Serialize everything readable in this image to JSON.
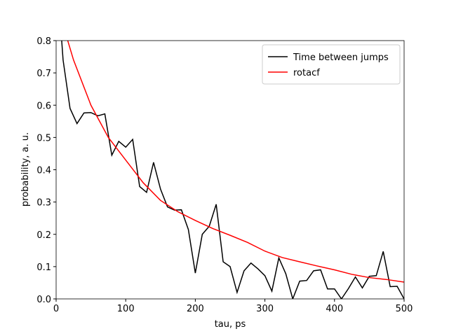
{
  "chart_data": {
    "type": "line",
    "xlabel": "tau, ps",
    "ylabel": "probability, a. u.",
    "xlim": [
      0,
      500
    ],
    "ylim": [
      0,
      0.8
    ],
    "xticks": [
      0,
      100,
      200,
      300,
      400,
      500
    ],
    "yticks": [
      {
        "value": 0,
        "label": "0.0"
      },
      {
        "value": 0.1,
        "label": "0.1"
      },
      {
        "value": 0.2,
        "label": "0.2"
      },
      {
        "value": 0.3,
        "label": "0.3"
      },
      {
        "value": 0.4,
        "label": "0.4"
      },
      {
        "value": 0.5,
        "label": "0.5"
      },
      {
        "value": 0.6,
        "label": "0.6"
      },
      {
        "value": 0.7,
        "label": "0.7"
      },
      {
        "value": 0.8,
        "label": "0.8"
      }
    ],
    "legend": "upper right",
    "series": [
      {
        "name": "Time between jumps",
        "color": "#000000",
        "x": [
          0,
          10,
          20,
          30,
          40,
          50,
          60,
          70,
          80,
          90,
          100,
          110,
          120,
          130,
          140,
          150,
          160,
          170,
          180,
          190,
          200,
          210,
          220,
          230,
          240,
          250,
          260,
          270,
          280,
          290,
          300,
          310,
          320,
          330,
          340,
          350,
          360,
          370,
          380,
          390,
          400,
          410,
          420,
          430,
          440,
          450,
          460,
          470,
          480,
          490,
          500
        ],
        "values": [
          1.04,
          0.74,
          0.59,
          0.543,
          0.576,
          0.577,
          0.567,
          0.573,
          0.445,
          0.488,
          0.47,
          0.494,
          0.348,
          0.33,
          0.423,
          0.34,
          0.285,
          0.275,
          0.276,
          0.215,
          0.08,
          0.2,
          0.225,
          0.293,
          0.115,
          0.1,
          0.02,
          0.087,
          0.111,
          0.093,
          0.072,
          0.024,
          0.127,
          0.078,
          0.0,
          0.055,
          0.057,
          0.087,
          0.09,
          0.031,
          0.031,
          0.0,
          0.032,
          0.068,
          0.034,
          0.07,
          0.072,
          0.147,
          0.038,
          0.039,
          0.0
        ]
      },
      {
        "name": "rotacf",
        "color": "#ff0000",
        "x": [
          0,
          25,
          50,
          75,
          100,
          125,
          150,
          175,
          200,
          225,
          250,
          275,
          300,
          325,
          350,
          375,
          400,
          425,
          450,
          475,
          500
        ],
        "values": [
          0.92,
          0.74,
          0.6,
          0.5,
          0.43,
          0.36,
          0.305,
          0.27,
          0.243,
          0.218,
          0.197,
          0.175,
          0.148,
          0.128,
          0.115,
          0.102,
          0.09,
          0.076,
          0.066,
          0.06,
          0.052
        ]
      }
    ]
  }
}
